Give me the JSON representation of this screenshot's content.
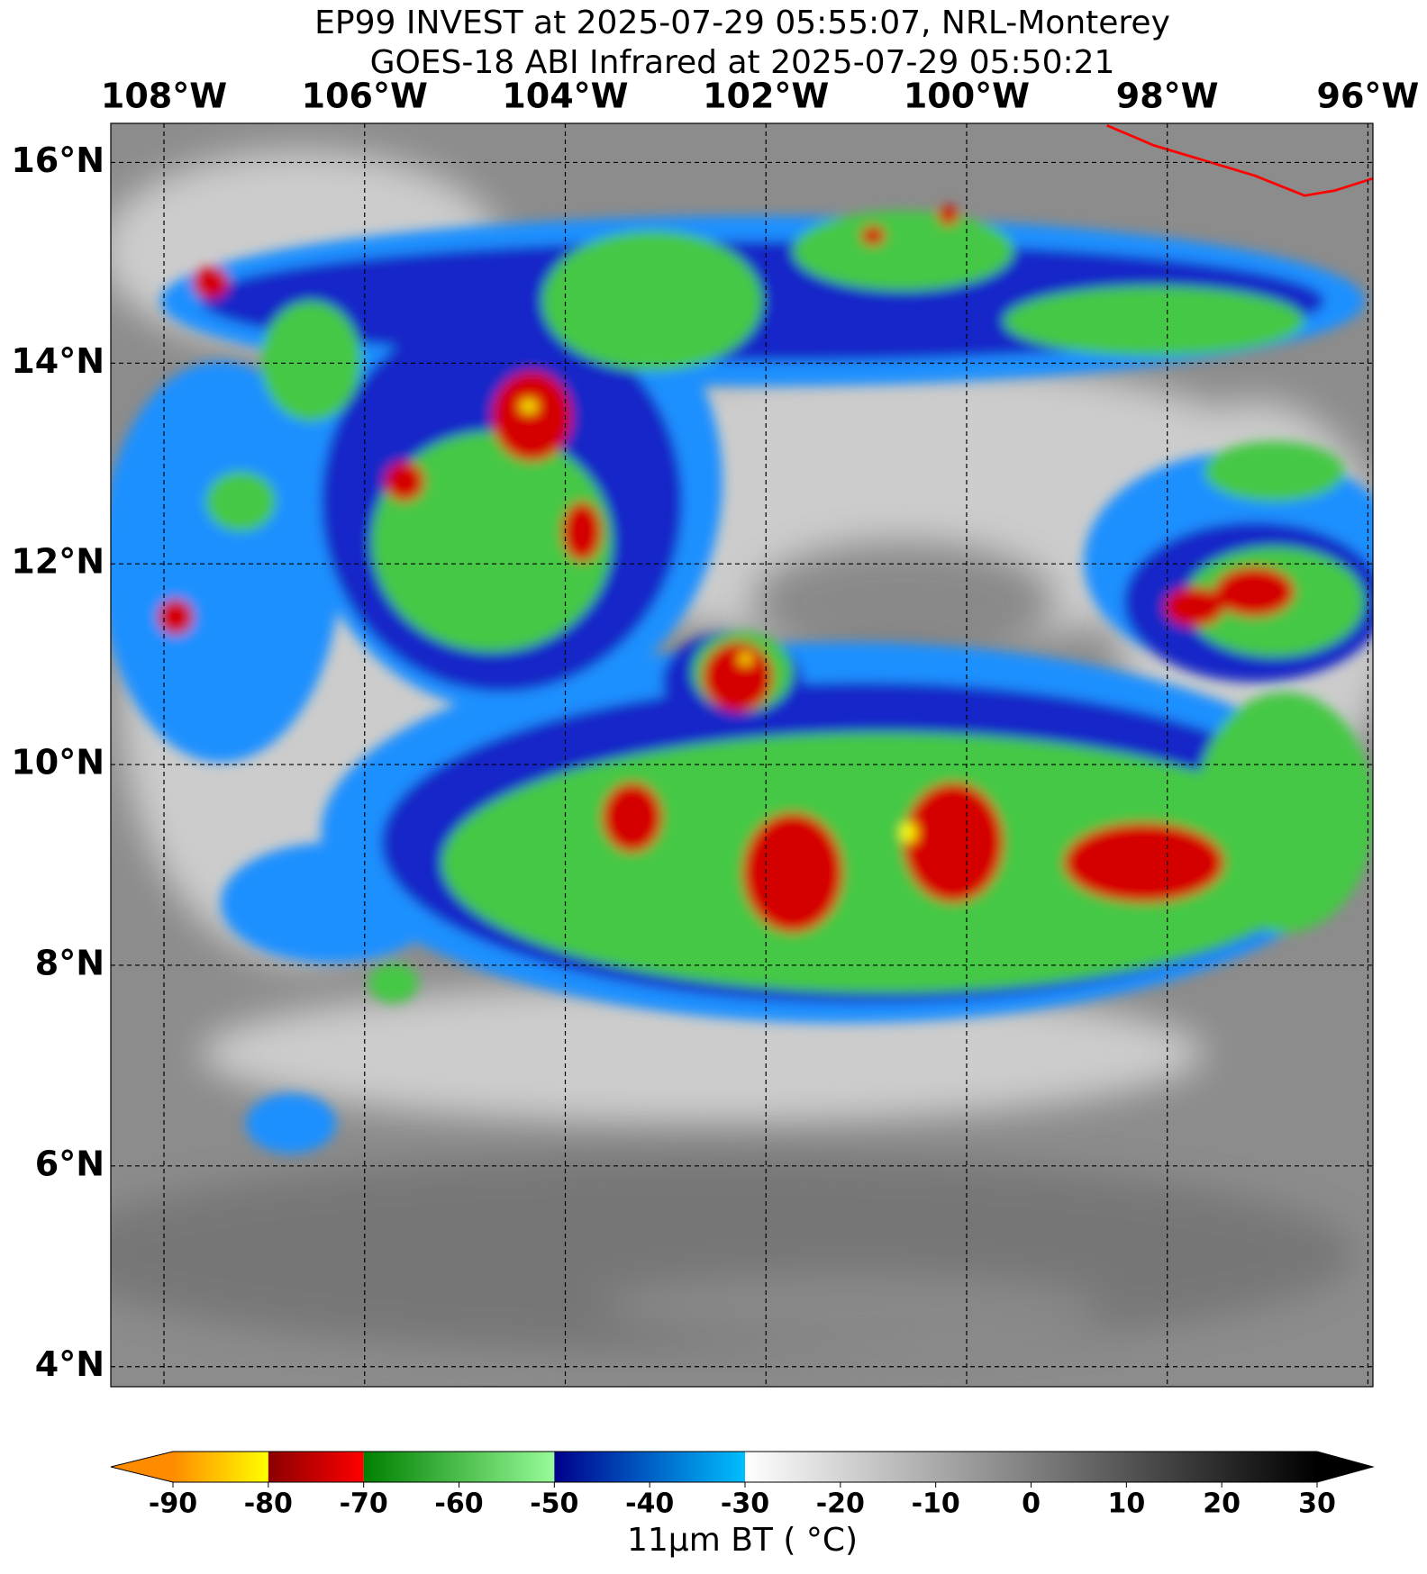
{
  "chart_data": {
    "type": "satellite-map",
    "title": [
      "EP99 INVEST at 2025-07-29 05:55:07, NRL-Monterey",
      "GOES-18 ABI Infrared at 2025-07-29 05:50:21"
    ],
    "xlim": [
      -108.53,
      -95.95
    ],
    "ylim": [
      3.8,
      16.39
    ],
    "xticks": [
      {
        "value": -108,
        "label": "108°W"
      },
      {
        "value": -106,
        "label": "106°W"
      },
      {
        "value": -104,
        "label": "104°W"
      },
      {
        "value": -102,
        "label": "102°W"
      },
      {
        "value": -100,
        "label": "100°W"
      },
      {
        "value": -98,
        "label": "98°W"
      },
      {
        "value": -96,
        "label": "96°W"
      }
    ],
    "yticks": [
      {
        "value": 4,
        "label": "4°N"
      },
      {
        "value": 6,
        "label": "6°N"
      },
      {
        "value": 8,
        "label": "8°N"
      },
      {
        "value": 10,
        "label": "10°N"
      },
      {
        "value": 12,
        "label": "12°N"
      },
      {
        "value": 14,
        "label": "14°N"
      },
      {
        "value": 16,
        "label": "16°N"
      }
    ],
    "grid": true,
    "colorbar": {
      "label": "11μm BT ( °C)",
      "clim": [
        -90,
        30
      ],
      "ticks": [
        -90,
        -80,
        -70,
        -60,
        -50,
        -40,
        -30,
        -20,
        -10,
        0,
        10,
        20,
        30
      ],
      "under_color": "#ff8c00",
      "over_color": "#000000",
      "segments": [
        {
          "from": -90,
          "to": -80,
          "colors": [
            "#ff8c00",
            "#ffff00"
          ]
        },
        {
          "from": -80,
          "to": -70,
          "colors": [
            "#8b0000",
            "#ff0000"
          ]
        },
        {
          "from": -70,
          "to": -50,
          "colors": [
            "#008000",
            "#98fb98"
          ]
        },
        {
          "from": -50,
          "to": -30,
          "colors": [
            "#00008b",
            "#00bfff"
          ]
        },
        {
          "from": -30,
          "to": 30,
          "colors": [
            "#ffffff",
            "#000000"
          ]
        }
      ]
    }
  }
}
